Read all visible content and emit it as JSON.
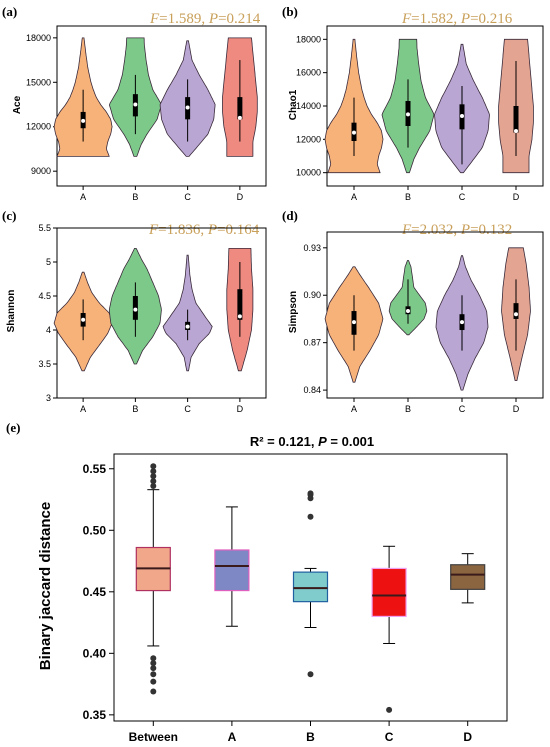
{
  "chart_data": [
    {
      "id": "a",
      "type": "violin",
      "panel_label": "(a)",
      "stat": {
        "f": "1.589",
        "p": "0.214"
      },
      "ylabel": "Ace",
      "ylim": [
        8000,
        18800
      ],
      "yticks": [
        9000,
        12000,
        15000,
        18000
      ],
      "categories": [
        "A",
        "B",
        "C",
        "D"
      ],
      "groups": [
        {
          "name": "A",
          "color": "#f7b27a",
          "min": 10000,
          "max": 18000,
          "q1": 11900,
          "median": 12400,
          "q3": 13000,
          "wlo": 11000,
          "whi": 14500,
          "density": [
            [
              10000,
              0.9
            ],
            [
              10500,
              0.8
            ],
            [
              11000,
              0.85
            ],
            [
              11500,
              0.95
            ],
            [
              12000,
              1.0
            ],
            [
              12500,
              0.95
            ],
            [
              13000,
              0.8
            ],
            [
              13500,
              0.6
            ],
            [
              14000,
              0.45
            ],
            [
              14500,
              0.35
            ],
            [
              15000,
              0.27
            ],
            [
              16000,
              0.16
            ],
            [
              17000,
              0.09
            ],
            [
              18000,
              0.03
            ]
          ]
        },
        {
          "name": "B",
          "color": "#7dc98a",
          "min": 10000,
          "max": 18000,
          "q1": 12700,
          "median": 13500,
          "q3": 14200,
          "wlo": 11500,
          "whi": 15500,
          "density": [
            [
              10000,
              0.05
            ],
            [
              10800,
              0.2
            ],
            [
              11500,
              0.4
            ],
            [
              12500,
              0.75
            ],
            [
              13500,
              0.9
            ],
            [
              14500,
              0.6
            ],
            [
              15500,
              0.45
            ],
            [
              16500,
              0.37
            ],
            [
              17500,
              0.31
            ],
            [
              18000,
              0.3
            ]
          ]
        },
        {
          "name": "C",
          "color": "#b9a6d3",
          "min": 10000,
          "max": 17800,
          "q1": 12500,
          "median": 13300,
          "q3": 14000,
          "wlo": 11000,
          "whi": 15200,
          "density": [
            [
              10000,
              0.05
            ],
            [
              10800,
              0.4
            ],
            [
              11500,
              0.7
            ],
            [
              12500,
              0.9
            ],
            [
              13500,
              0.95
            ],
            [
              14500,
              0.7
            ],
            [
              15500,
              0.4
            ],
            [
              16500,
              0.15
            ],
            [
              17800,
              0.03
            ]
          ]
        },
        {
          "name": "D",
          "color": "#ee8a80",
          "min": 10000,
          "max": 18000,
          "q1": 12500,
          "median": 12600,
          "q3": 14000,
          "wlo": 11000,
          "whi": 16500,
          "density": [
            [
              10000,
              0.45
            ],
            [
              11000,
              0.45
            ],
            [
              12000,
              0.55
            ],
            [
              13000,
              0.6
            ],
            [
              14000,
              0.6
            ],
            [
              15000,
              0.55
            ],
            [
              16000,
              0.5
            ],
            [
              17000,
              0.45
            ],
            [
              18000,
              0.4
            ]
          ]
        }
      ]
    },
    {
      "id": "b",
      "type": "violin",
      "panel_label": "(b)",
      "stat": {
        "f": "1.582",
        "p": "0.216"
      },
      "ylabel": "Chao1",
      "ylim": [
        9200,
        18800
      ],
      "yticks": [
        10000,
        12000,
        14000,
        16000,
        18000
      ],
      "categories": [
        "A",
        "B",
        "C",
        "D"
      ],
      "groups": [
        {
          "name": "A",
          "color": "#f7b27a",
          "min": 10000,
          "max": 18000,
          "q1": 11900,
          "median": 12400,
          "q3": 13000,
          "wlo": 11000,
          "whi": 14500,
          "density": [
            [
              10000,
              0.9
            ],
            [
              10500,
              0.8
            ],
            [
              11000,
              0.85
            ],
            [
              11500,
              0.95
            ],
            [
              12000,
              1.0
            ],
            [
              12500,
              0.95
            ],
            [
              13000,
              0.8
            ],
            [
              13500,
              0.6
            ],
            [
              14000,
              0.45
            ],
            [
              14500,
              0.35
            ],
            [
              15000,
              0.27
            ],
            [
              16000,
              0.16
            ],
            [
              17000,
              0.09
            ],
            [
              18000,
              0.03
            ]
          ]
        },
        {
          "name": "B",
          "color": "#7dc98a",
          "min": 10000,
          "max": 18000,
          "q1": 12800,
          "median": 13500,
          "q3": 14300,
          "wlo": 11500,
          "whi": 15600,
          "density": [
            [
              10000,
              0.05
            ],
            [
              10800,
              0.2
            ],
            [
              11500,
              0.4
            ],
            [
              12500,
              0.75
            ],
            [
              13500,
              0.9
            ],
            [
              14500,
              0.6
            ],
            [
              15500,
              0.45
            ],
            [
              16500,
              0.37
            ],
            [
              17500,
              0.31
            ],
            [
              18000,
              0.3
            ]
          ]
        },
        {
          "name": "C",
          "color": "#b9a6d3",
          "min": 10000,
          "max": 17700,
          "q1": 12600,
          "median": 13400,
          "q3": 14100,
          "wlo": 10500,
          "whi": 15200,
          "density": [
            [
              10000,
              0.05
            ],
            [
              10800,
              0.4
            ],
            [
              11500,
              0.7
            ],
            [
              12500,
              0.9
            ],
            [
              13500,
              0.95
            ],
            [
              14500,
              0.7
            ],
            [
              15500,
              0.4
            ],
            [
              16500,
              0.15
            ],
            [
              17700,
              0.03
            ]
          ]
        },
        {
          "name": "D",
          "color": "#e3a592",
          "min": 10000,
          "max": 18000,
          "q1": 12400,
          "median": 12500,
          "q3": 14000,
          "wlo": 11000,
          "whi": 16700,
          "density": [
            [
              10000,
              0.45
            ],
            [
              11000,
              0.45
            ],
            [
              12000,
              0.55
            ],
            [
              13000,
              0.6
            ],
            [
              14000,
              0.6
            ],
            [
              15000,
              0.55
            ],
            [
              16000,
              0.5
            ],
            [
              17000,
              0.45
            ],
            [
              18000,
              0.4
            ]
          ]
        }
      ]
    },
    {
      "id": "c",
      "type": "violin",
      "panel_label": "(c)",
      "stat": {
        "f": "1.836",
        "p": "0.164"
      },
      "ylabel": "Shannon",
      "ylim": [
        3.0,
        5.5
      ],
      "yticks": [
        3,
        3.5,
        4,
        4.5,
        5,
        5.5
      ],
      "categories": [
        "A",
        "B",
        "C",
        "D"
      ],
      "groups": [
        {
          "name": "A",
          "color": "#f7b27a",
          "min": 3.4,
          "max": 4.85,
          "q1": 4.05,
          "median": 4.15,
          "q3": 4.25,
          "wlo": 3.85,
          "whi": 4.45,
          "density": [
            [
              3.4,
              0.04
            ],
            [
              3.6,
              0.25
            ],
            [
              3.8,
              0.6
            ],
            [
              3.95,
              0.85
            ],
            [
              4.1,
              1.0
            ],
            [
              4.25,
              0.9
            ],
            [
              4.4,
              0.55
            ],
            [
              4.55,
              0.3
            ],
            [
              4.7,
              0.15
            ],
            [
              4.85,
              0.03
            ]
          ]
        },
        {
          "name": "B",
          "color": "#7dc98a",
          "min": 3.5,
          "max": 5.2,
          "q1": 4.15,
          "median": 4.3,
          "q3": 4.5,
          "wlo": 3.9,
          "whi": 4.7,
          "density": [
            [
              3.5,
              0.04
            ],
            [
              3.7,
              0.25
            ],
            [
              3.9,
              0.6
            ],
            [
              4.1,
              0.85
            ],
            [
              4.3,
              0.9
            ],
            [
              4.5,
              0.8
            ],
            [
              4.7,
              0.6
            ],
            [
              4.9,
              0.4
            ],
            [
              5.05,
              0.2
            ],
            [
              5.2,
              0.03
            ]
          ]
        },
        {
          "name": "C",
          "color": "#b9a6d3",
          "min": 3.4,
          "max": 5.1,
          "q1": 4.0,
          "median": 4.05,
          "q3": 4.12,
          "wlo": 3.85,
          "whi": 4.3,
          "density": [
            [
              3.4,
              0.03
            ],
            [
              3.6,
              0.12
            ],
            [
              3.8,
              0.4
            ],
            [
              3.95,
              0.75
            ],
            [
              4.05,
              0.85
            ],
            [
              4.2,
              0.6
            ],
            [
              4.4,
              0.28
            ],
            [
              4.6,
              0.15
            ],
            [
              4.8,
              0.08
            ],
            [
              5.1,
              0.02
            ]
          ]
        },
        {
          "name": "D",
          "color": "#ee8a80",
          "min": 3.4,
          "max": 5.2,
          "q1": 4.15,
          "median": 4.2,
          "q3": 4.6,
          "wlo": 3.9,
          "whi": 5.0,
          "density": [
            [
              3.4,
              0.05
            ],
            [
              3.7,
              0.25
            ],
            [
              4.0,
              0.4
            ],
            [
              4.3,
              0.45
            ],
            [
              4.6,
              0.45
            ],
            [
              4.9,
              0.4
            ],
            [
              5.2,
              0.38
            ]
          ]
        }
      ]
    },
    {
      "id": "d",
      "type": "violin",
      "panel_label": "(d)",
      "stat": {
        "f": "2.032",
        "p": "0.132"
      },
      "ylabel": "Simpson",
      "ylim": [
        0.835,
        0.94
      ],
      "yticks": [
        0.84,
        0.87,
        0.9,
        0.93
      ],
      "categories": [
        "A",
        "B",
        "C",
        "D"
      ],
      "groups": [
        {
          "name": "A",
          "color": "#f7b27a",
          "min": 0.845,
          "max": 0.918,
          "q1": 0.875,
          "median": 0.883,
          "q3": 0.89,
          "wlo": 0.865,
          "whi": 0.9,
          "density": [
            [
              0.845,
              0.03
            ],
            [
              0.855,
              0.2
            ],
            [
              0.865,
              0.55
            ],
            [
              0.875,
              0.85
            ],
            [
              0.885,
              1.0
            ],
            [
              0.895,
              0.85
            ],
            [
              0.905,
              0.5
            ],
            [
              0.913,
              0.2
            ],
            [
              0.918,
              0.03
            ]
          ]
        },
        {
          "name": "B",
          "color": "#7dc98a",
          "min": 0.875,
          "max": 0.922,
          "q1": 0.888,
          "median": 0.89,
          "q3": 0.893,
          "wlo": 0.882,
          "whi": 0.91,
          "density": [
            [
              0.875,
              0.03
            ],
            [
              0.88,
              0.3
            ],
            [
              0.885,
              0.55
            ],
            [
              0.89,
              0.65
            ],
            [
              0.895,
              0.6
            ],
            [
              0.9,
              0.4
            ],
            [
              0.905,
              0.2
            ],
            [
              0.912,
              0.15
            ],
            [
              0.918,
              0.1
            ],
            [
              0.922,
              0.02
            ]
          ]
        },
        {
          "name": "C",
          "color": "#b9a6d3",
          "min": 0.84,
          "max": 0.925,
          "q1": 0.878,
          "median": 0.883,
          "q3": 0.888,
          "wlo": 0.865,
          "whi": 0.9,
          "density": [
            [
              0.84,
              0.03
            ],
            [
              0.85,
              0.2
            ],
            [
              0.86,
              0.45
            ],
            [
              0.87,
              0.75
            ],
            [
              0.88,
              0.9
            ],
            [
              0.89,
              0.85
            ],
            [
              0.9,
              0.6
            ],
            [
              0.91,
              0.3
            ],
            [
              0.918,
              0.12
            ],
            [
              0.925,
              0.02
            ]
          ]
        },
        {
          "name": "D",
          "color": "#e3a592",
          "min": 0.846,
          "max": 0.93,
          "q1": 0.885,
          "median": 0.888,
          "q3": 0.895,
          "wlo": 0.865,
          "whi": 0.91,
          "density": [
            [
              0.846,
              0.03
            ],
            [
              0.86,
              0.2
            ],
            [
              0.875,
              0.4
            ],
            [
              0.89,
              0.5
            ],
            [
              0.905,
              0.45
            ],
            [
              0.92,
              0.35
            ],
            [
              0.93,
              0.25
            ]
          ]
        }
      ]
    },
    {
      "id": "e",
      "type": "box",
      "panel_label": "(e)",
      "title": "R² = 0.121, P = 0.001",
      "title_r2": "R² = 0.121, ",
      "title_p": "P",
      "title_pval": " = 0.001",
      "ylabel": "Binary jaccard distance",
      "ylim": [
        0.345,
        0.562
      ],
      "yticks": [
        0.35,
        0.4,
        0.45,
        0.5,
        0.55
      ],
      "categories": [
        "Between",
        "A",
        "B",
        "C",
        "D"
      ],
      "groups": [
        {
          "name": "Between",
          "color": "#f1a78a",
          "edge": "#b03060",
          "q1": 0.451,
          "median": 0.469,
          "q3": 0.486,
          "wlo": 0.406,
          "whi": 0.533,
          "mean": 0.469,
          "outliers": [
            0.369,
            0.377,
            0.383,
            0.388,
            0.392,
            0.396,
            0.536,
            0.54,
            0.544,
            0.548,
            0.552
          ]
        },
        {
          "name": "A",
          "color": "#7d88c4",
          "edge": "#e060c0",
          "q1": 0.451,
          "median": 0.471,
          "q3": 0.484,
          "wlo": 0.422,
          "whi": 0.519,
          "mean": 0.468,
          "outliers": []
        },
        {
          "name": "B",
          "color": "#80cccc",
          "edge": "#2060a0",
          "q1": 0.442,
          "median": 0.453,
          "q3": 0.466,
          "wlo": 0.421,
          "whi": 0.469,
          "mean": 0.455,
          "outliers": [
            0.383,
            0.511,
            0.526,
            0.529,
            0.53
          ]
        },
        {
          "name": "C",
          "color": "#ee1111",
          "edge": "#f0a0f0",
          "q1": 0.43,
          "median": 0.447,
          "q3": 0.469,
          "wlo": 0.408,
          "whi": 0.487,
          "mean": 0.45,
          "outliers": [
            0.354
          ]
        },
        {
          "name": "D",
          "color": "#8b6440",
          "edge": "#404040",
          "q1": 0.452,
          "median": 0.464,
          "q3": 0.472,
          "wlo": 0.441,
          "whi": 0.481,
          "mean": 0.463,
          "outliers": []
        }
      ]
    }
  ]
}
